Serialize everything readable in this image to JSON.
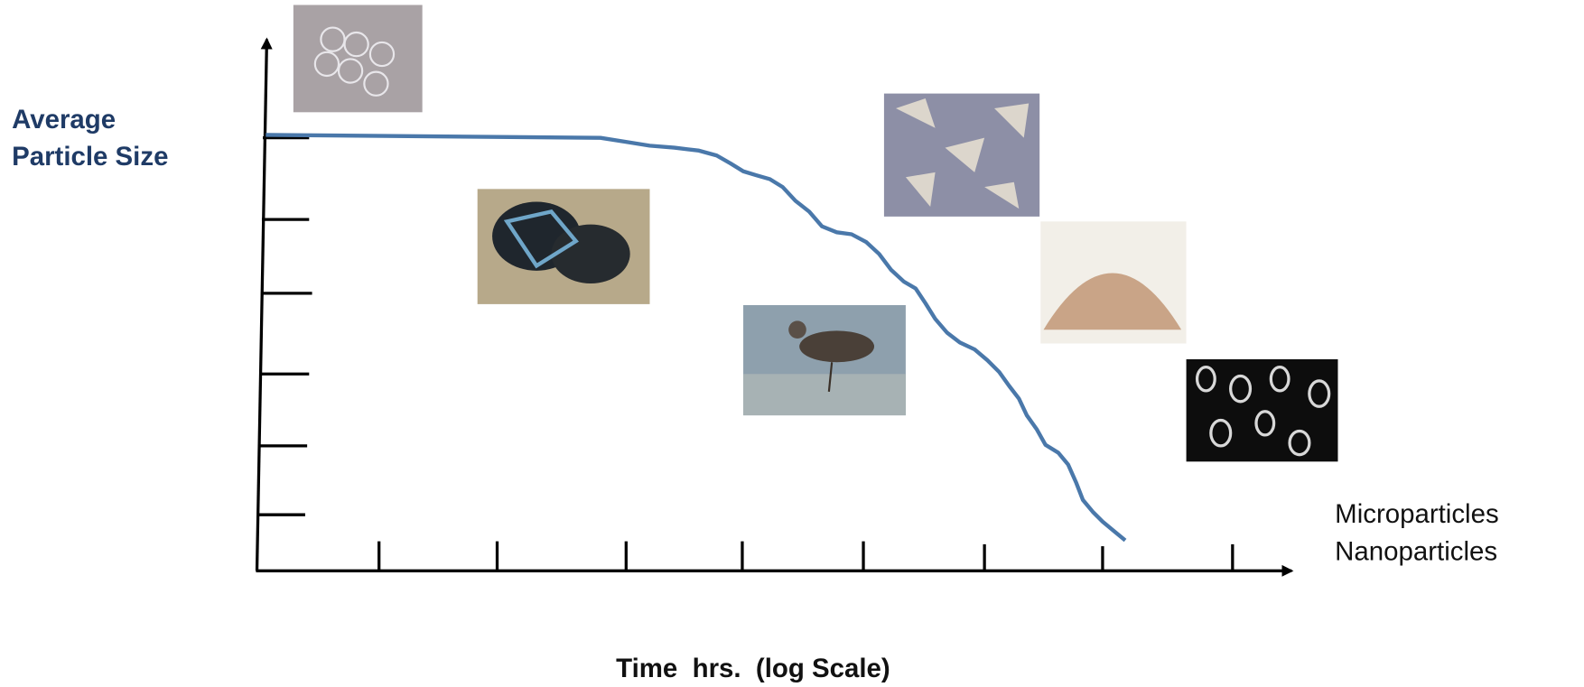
{
  "y_axis_label": {
    "line1": "Average",
    "line2": "Particle Size"
  },
  "right_labels": {
    "top": "Microparticles",
    "bottom": "Nanoparticles"
  },
  "x_axis_label": "Time  hrs.  (log Scale)"
}
